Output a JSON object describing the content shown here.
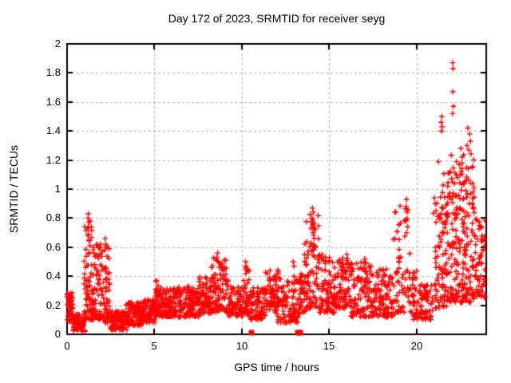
{
  "chart_data": {
    "type": "scatter",
    "title": "Day 172 of 2023, SRMTID for receiver seyg",
    "xlabel": "GPS time / hours",
    "ylabel": "SRMTID / TECUs",
    "xlim": [
      0,
      24
    ],
    "ylim": [
      0,
      2
    ],
    "xticks": [
      0,
      5,
      10,
      15,
      20
    ],
    "xtick_labels": [
      "0",
      "5",
      "10",
      "15",
      "20"
    ],
    "yticks": [
      0,
      0.2,
      0.4,
      0.6,
      0.8,
      1,
      1.2,
      1.4,
      1.6,
      1.8,
      2
    ],
    "ytick_labels": [
      "0",
      "0.2",
      "0.4",
      "0.6",
      "0.8",
      "1",
      "1.2",
      "1.4",
      "1.6",
      "1.8",
      "2"
    ],
    "grid": true,
    "legend": "none",
    "marker": {
      "symbol": "plus",
      "color": "#ff0000",
      "size": 7
    },
    "seed": 172,
    "series": [
      {
        "name": "srmtid-points",
        "symbol": "plus",
        "color": "#ff0000",
        "envelope_bins": [
          [
            0.0,
            0.35,
            0.08,
            0.3,
            50,
            1.3
          ],
          [
            0.35,
            1.0,
            0.02,
            0.14,
            75,
            1.3
          ],
          [
            1.0,
            1.45,
            0.1,
            0.8,
            70,
            1.5
          ],
          [
            1.45,
            2.05,
            0.1,
            0.62,
            75,
            1.6
          ],
          [
            2.05,
            2.45,
            0.08,
            0.64,
            50,
            1.6
          ],
          [
            2.45,
            3.4,
            0.03,
            0.16,
            100,
            1.2
          ],
          [
            3.4,
            4.3,
            0.06,
            0.22,
            95,
            1.2
          ],
          [
            4.3,
            5.05,
            0.08,
            0.24,
            80,
            1.2
          ],
          [
            5.05,
            5.35,
            0.12,
            0.38,
            40,
            1.3
          ],
          [
            5.35,
            6.3,
            0.12,
            0.32,
            95,
            1.3
          ],
          [
            6.3,
            7.6,
            0.12,
            0.34,
            125,
            1.3
          ],
          [
            7.6,
            8.3,
            0.14,
            0.4,
            75,
            1.3
          ],
          [
            8.3,
            9.3,
            0.15,
            0.54,
            95,
            1.5
          ],
          [
            9.3,
            10.1,
            0.12,
            0.33,
            75,
            1.3
          ],
          [
            10.1,
            10.45,
            0.14,
            0.48,
            36,
            1.4
          ],
          [
            10.45,
            11.4,
            0.1,
            0.32,
            85,
            1.3
          ],
          [
            11.4,
            12.1,
            0.14,
            0.45,
            72,
            1.4
          ],
          [
            12.1,
            13.3,
            0.08,
            0.4,
            105,
            1.4
          ],
          [
            13.3,
            13.6,
            0.15,
            0.42,
            32,
            1.3
          ],
          [
            13.6,
            14.45,
            0.18,
            0.85,
            85,
            1.6
          ],
          [
            14.45,
            15.3,
            0.15,
            0.55,
            80,
            1.5
          ],
          [
            15.3,
            16.3,
            0.18,
            0.55,
            90,
            1.5
          ],
          [
            16.3,
            17.6,
            0.12,
            0.5,
            120,
            1.6
          ],
          [
            17.6,
            18.7,
            0.12,
            0.45,
            95,
            1.5
          ],
          [
            18.7,
            19.6,
            0.15,
            0.9,
            62,
            1.7
          ],
          [
            19.6,
            20.1,
            0.1,
            0.45,
            36,
            1.5
          ],
          [
            20.1,
            21.0,
            0.1,
            0.35,
            62,
            1.3
          ],
          [
            21.0,
            21.7,
            0.18,
            0.95,
            78,
            1.6
          ],
          [
            21.7,
            22.6,
            0.22,
            1.15,
            105,
            1.6
          ],
          [
            22.6,
            23.4,
            0.22,
            1.2,
            105,
            1.6
          ],
          [
            23.4,
            23.95,
            0.25,
            0.8,
            55,
            1.4
          ],
          [
            21.2,
            23.35,
            0.78,
            1.25,
            28,
            1.0
          ]
        ],
        "peak_points": [
          [
            1.22,
            0.83
          ],
          [
            1.2,
            0.8
          ],
          [
            1.25,
            0.77
          ],
          [
            1.18,
            0.73
          ],
          [
            1.23,
            0.69
          ],
          [
            1.27,
            0.65
          ],
          [
            2.18,
            0.66
          ],
          [
            2.21,
            0.62
          ],
          [
            2.15,
            0.58
          ],
          [
            8.62,
            0.56
          ],
          [
            8.58,
            0.53
          ],
          [
            8.66,
            0.5
          ],
          [
            10.22,
            0.5
          ],
          [
            10.25,
            0.47
          ],
          [
            12.95,
            0.5
          ],
          [
            12.99,
            0.47
          ],
          [
            14.05,
            0.87
          ],
          [
            14.1,
            0.84
          ],
          [
            14.02,
            0.8
          ],
          [
            14.12,
            0.77
          ],
          [
            13.96,
            0.73
          ],
          [
            14.08,
            0.7
          ],
          [
            14.15,
            0.66
          ],
          [
            16.02,
            0.55
          ],
          [
            16.06,
            0.52
          ],
          [
            17.05,
            0.52
          ],
          [
            17.1,
            0.49
          ],
          [
            19.44,
            0.93
          ],
          [
            19.41,
            0.88
          ],
          [
            19.47,
            0.84
          ],
          [
            19.39,
            0.79
          ],
          [
            19.5,
            0.74
          ],
          [
            19.45,
            0.7
          ],
          [
            21.08,
            0.9
          ],
          [
            21.12,
            0.85
          ],
          [
            21.45,
            1.5
          ],
          [
            21.42,
            1.46
          ],
          [
            21.48,
            1.43
          ],
          [
            21.44,
            1.4
          ],
          [
            22.08,
            1.87
          ],
          [
            22.1,
            1.83
          ],
          [
            22.09,
            1.67
          ],
          [
            22.12,
            1.57
          ],
          [
            22.07,
            1.52
          ],
          [
            22.95,
            1.42
          ],
          [
            23.05,
            1.38
          ],
          [
            23.1,
            1.33
          ],
          [
            22.9,
            1.3
          ],
          [
            23.0,
            1.27
          ],
          [
            22.55,
            1.28
          ],
          [
            22.62,
            1.22
          ],
          [
            23.2,
            1.15
          ],
          [
            21.95,
            1.12
          ],
          [
            22.35,
            1.08
          ],
          [
            22.75,
            1.05
          ],
          [
            21.8,
            1.02
          ],
          [
            23.25,
            0.98
          ]
        ]
      },
      {
        "name": "baseline-flags",
        "symbol": "filled-square",
        "color": "#ff0000",
        "points": [
          [
            10.58,
            0
          ],
          [
            13.22,
            0
          ],
          [
            13.34,
            0
          ]
        ]
      }
    ]
  },
  "colors": {
    "marker": "#ff0000",
    "grid": "#b0b0b0",
    "axis": "#000000",
    "background": "#ffffff",
    "text": "#000000"
  }
}
